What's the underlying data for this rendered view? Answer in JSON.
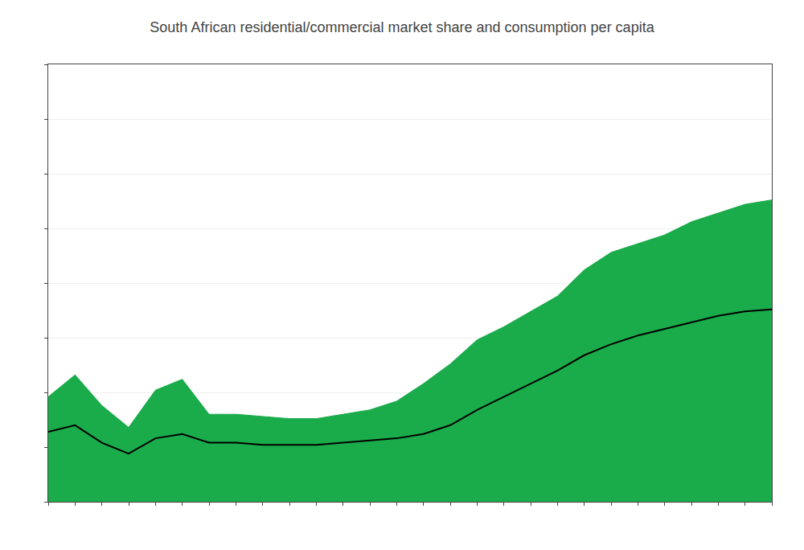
{
  "chart_data": {
    "type": "area",
    "title": "South African residential/commercial market share and consumption per capita",
    "x": [
      0,
      1,
      2,
      3,
      4,
      5,
      6,
      7,
      8,
      9,
      10,
      11,
      12,
      13,
      14,
      15,
      16,
      17,
      18,
      19,
      20,
      21,
      22,
      23,
      24,
      25,
      26,
      27
    ],
    "series": [
      {
        "type": "area",
        "color": "#1aab4a",
        "values": [
          4.8,
          5.8,
          4.4,
          3.4,
          5.1,
          5.6,
          4.0,
          4.0,
          3.9,
          3.8,
          3.8,
          4.0,
          4.2,
          4.6,
          5.4,
          6.3,
          7.4,
          8.0,
          8.7,
          9.4,
          10.6,
          11.4,
          11.8,
          12.2,
          12.8,
          13.2,
          13.6,
          13.8
        ]
      },
      {
        "type": "line",
        "color": "#000000",
        "values": [
          3.2,
          3.5,
          2.7,
          2.2,
          2.9,
          3.1,
          2.7,
          2.7,
          2.6,
          2.6,
          2.6,
          2.7,
          2.8,
          2.9,
          3.1,
          3.5,
          4.2,
          4.8,
          5.4,
          6.0,
          6.7,
          7.2,
          7.6,
          7.9,
          8.2,
          8.5,
          8.7,
          8.8
        ]
      }
    ],
    "xlim": [
      0,
      27
    ],
    "xticks": [
      0,
      1,
      2,
      3,
      4,
      5,
      6,
      7,
      8,
      9,
      10,
      11,
      12,
      13,
      14,
      15,
      16,
      17,
      18,
      19,
      20,
      21,
      22,
      23,
      24,
      25,
      26,
      27
    ],
    "ylim": [
      0,
      20
    ],
    "yticks": [
      0,
      2.5,
      5,
      7.5,
      10,
      12.5,
      15,
      17.5,
      20
    ],
    "grid": true,
    "tick_labels": false
  }
}
